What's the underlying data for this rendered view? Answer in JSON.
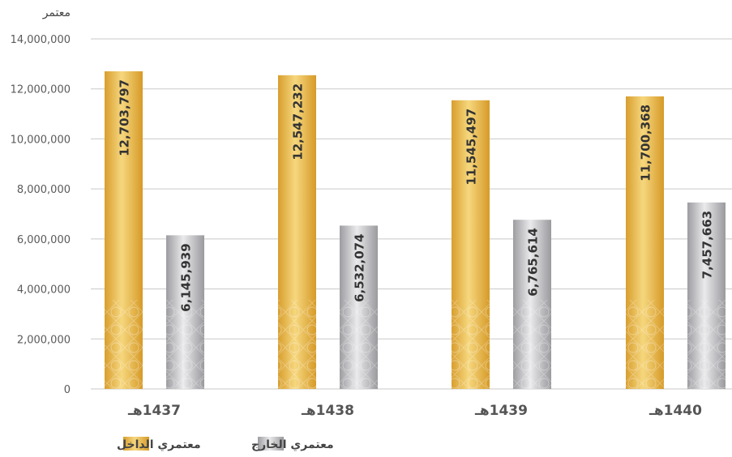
{
  "chart_data": {
    "type": "bar",
    "ylabel": "معتمر",
    "categories": [
      "1437هـ",
      "1438هـ",
      "1439هـ",
      "1440هـ"
    ],
    "series": [
      {
        "name": "معتمري الداخل",
        "color": "#e7b84c",
        "values": [
          12703797,
          12547232,
          11545497,
          11700368
        ],
        "value_labels": [
          "12,703,797",
          "12,547,232",
          "11,545,497",
          "11,700,368"
        ]
      },
      {
        "name": "معتمري الخارج",
        "color": "#b9b9bc",
        "values": [
          6145939,
          6532074,
          6765614,
          7457663
        ],
        "value_labels": [
          "6,145,939",
          "6,532,074",
          "6,765,614",
          "7,457,663"
        ]
      }
    ],
    "ylim": [
      0,
      14000000
    ],
    "yticks": [
      0,
      2000000,
      4000000,
      6000000,
      8000000,
      10000000,
      12000000,
      14000000
    ],
    "ytick_labels": [
      "0",
      "2,000,000",
      "4,000,000",
      "6,000,000",
      "8,000,000",
      "10,000,000",
      "12,000,000",
      "14,000,000"
    ],
    "grid": true,
    "legend_position": "bottom-left"
  }
}
